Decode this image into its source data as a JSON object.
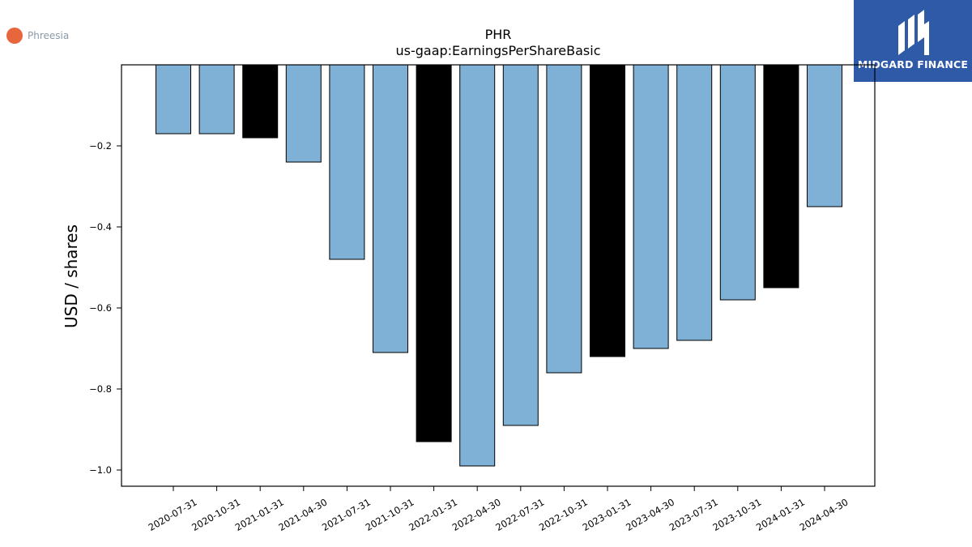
{
  "company": {
    "name": "Phreesia",
    "logo_color": "#e8663c"
  },
  "brand": {
    "name": "MIDGARD FINANCE",
    "bg_color": "#2e5aa8"
  },
  "chart_data": {
    "type": "bar",
    "title": "PHR",
    "subtitle": "us-gaap:EarningsPerShareBasic",
    "xlabel": "",
    "ylabel": "USD / shares",
    "categories": [
      "2020-07-31",
      "2020-10-31",
      "2021-01-31",
      "2021-04-30",
      "2021-07-31",
      "2021-10-31",
      "2022-01-31",
      "2022-04-30",
      "2022-07-31",
      "2022-10-31",
      "2023-01-31",
      "2023-04-30",
      "2023-07-31",
      "2023-10-31",
      "2024-01-31",
      "2024-04-30"
    ],
    "values": [
      -0.17,
      -0.17,
      -0.18,
      -0.24,
      -0.48,
      -0.71,
      -0.93,
      -0.99,
      -0.89,
      -0.76,
      -0.72,
      -0.7,
      -0.68,
      -0.58,
      -0.55,
      -0.35
    ],
    "highlight": [
      false,
      false,
      true,
      false,
      false,
      false,
      true,
      false,
      false,
      false,
      true,
      false,
      false,
      false,
      true,
      false
    ],
    "ylim": [
      -1.04,
      0.0
    ],
    "yticks": [
      -0.2,
      -0.4,
      -0.6,
      -0.8,
      -1.0
    ],
    "ytick_labels": [
      "−0.2",
      "−0.4",
      "−0.6",
      "−0.8",
      "−1.0"
    ],
    "colors": {
      "bar": "#7fb0d5",
      "highlight": "#000000",
      "edge": "#000000"
    },
    "grid": false,
    "legend": "none"
  }
}
